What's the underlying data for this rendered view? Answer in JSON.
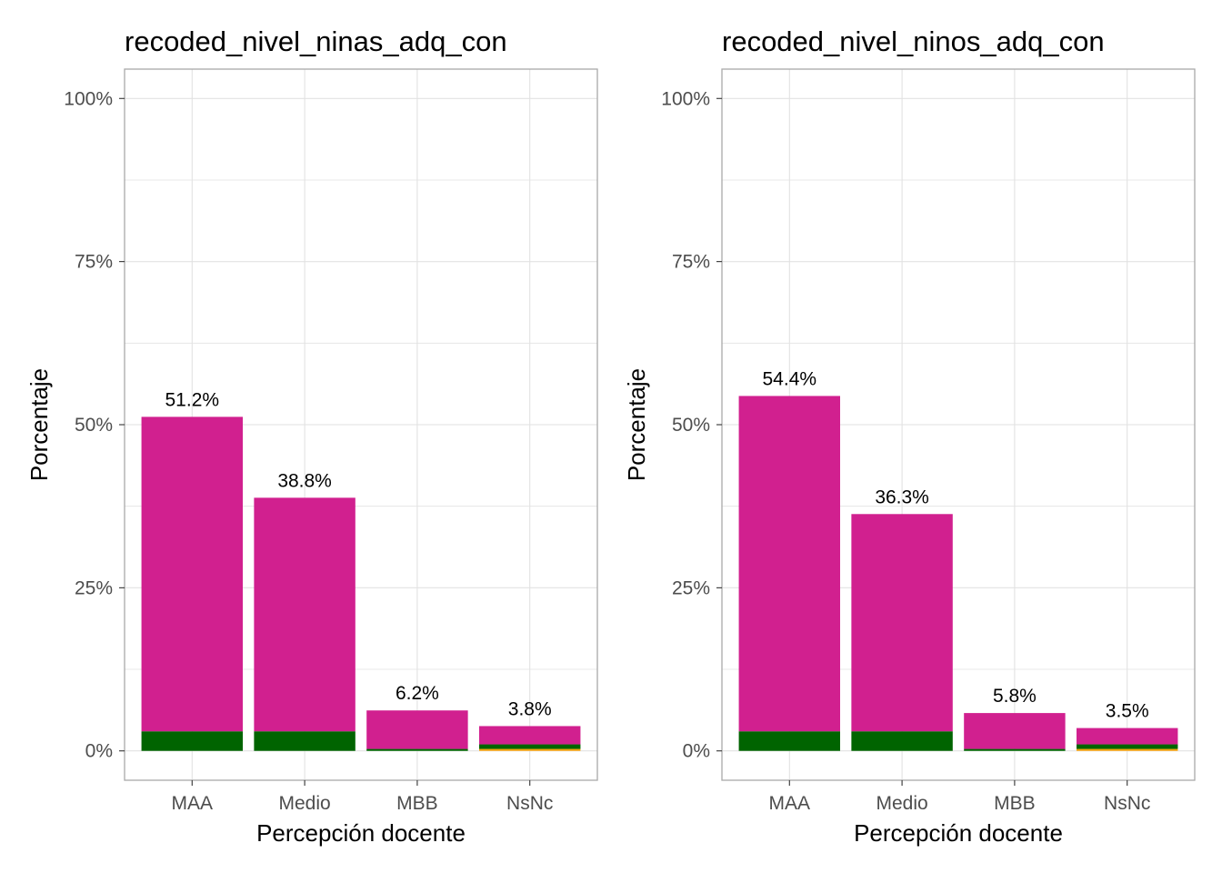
{
  "colors": {
    "bar_main": "#d1208f",
    "bar_base": "#006400",
    "bar_accent": "#f5a30a",
    "grid": "#e2e2e2",
    "panel_border": "#a9a9a9",
    "background": "#ffffff"
  },
  "chart_data": [
    {
      "type": "bar",
      "stacked": true,
      "title": "recoded_nivel_ninas_adq_con",
      "xlabel": "Percepción docente",
      "ylabel": "Porcentaje",
      "categories": [
        "MAA",
        "Medio",
        "MBB",
        "NsNc"
      ],
      "totals": [
        51.2,
        38.8,
        6.2,
        3.8
      ],
      "data_labels": [
        "51.2%",
        "38.8%",
        "6.2%",
        "3.8%"
      ],
      "series": [
        {
          "color": "#f5a30a",
          "values": [
            0,
            0,
            0,
            0.3
          ]
        },
        {
          "color": "#006400",
          "values": [
            3.0,
            3.0,
            0.3,
            0.7
          ]
        },
        {
          "color": "#d1208f",
          "values": [
            48.2,
            35.8,
            5.9,
            2.8
          ]
        }
      ],
      "ylim": [
        -4.5,
        104.5
      ],
      "yticks": [
        0,
        25,
        50,
        75,
        100
      ],
      "ytick_labels": [
        "0%",
        "25%",
        "50%",
        "75%",
        "100%"
      ],
      "grid": true,
      "legend": "none"
    },
    {
      "type": "bar",
      "stacked": true,
      "title": "recoded_nivel_ninos_adq_con",
      "xlabel": "Percepción docente",
      "ylabel": "Porcentaje",
      "categories": [
        "MAA",
        "Medio",
        "MBB",
        "NsNc"
      ],
      "totals": [
        54.4,
        36.3,
        5.8,
        3.5
      ],
      "data_labels": [
        "54.4%",
        "36.3%",
        "5.8%",
        "3.5%"
      ],
      "series": [
        {
          "color": "#f5a30a",
          "values": [
            0,
            0,
            0,
            0.3
          ]
        },
        {
          "color": "#006400",
          "values": [
            3.0,
            3.0,
            0.3,
            0.7
          ]
        },
        {
          "color": "#d1208f",
          "values": [
            51.4,
            33.3,
            5.5,
            2.5
          ]
        }
      ],
      "ylim": [
        -4.5,
        104.5
      ],
      "yticks": [
        0,
        25,
        50,
        75,
        100
      ],
      "ytick_labels": [
        "0%",
        "25%",
        "50%",
        "75%",
        "100%"
      ],
      "grid": true,
      "legend": "none"
    }
  ]
}
